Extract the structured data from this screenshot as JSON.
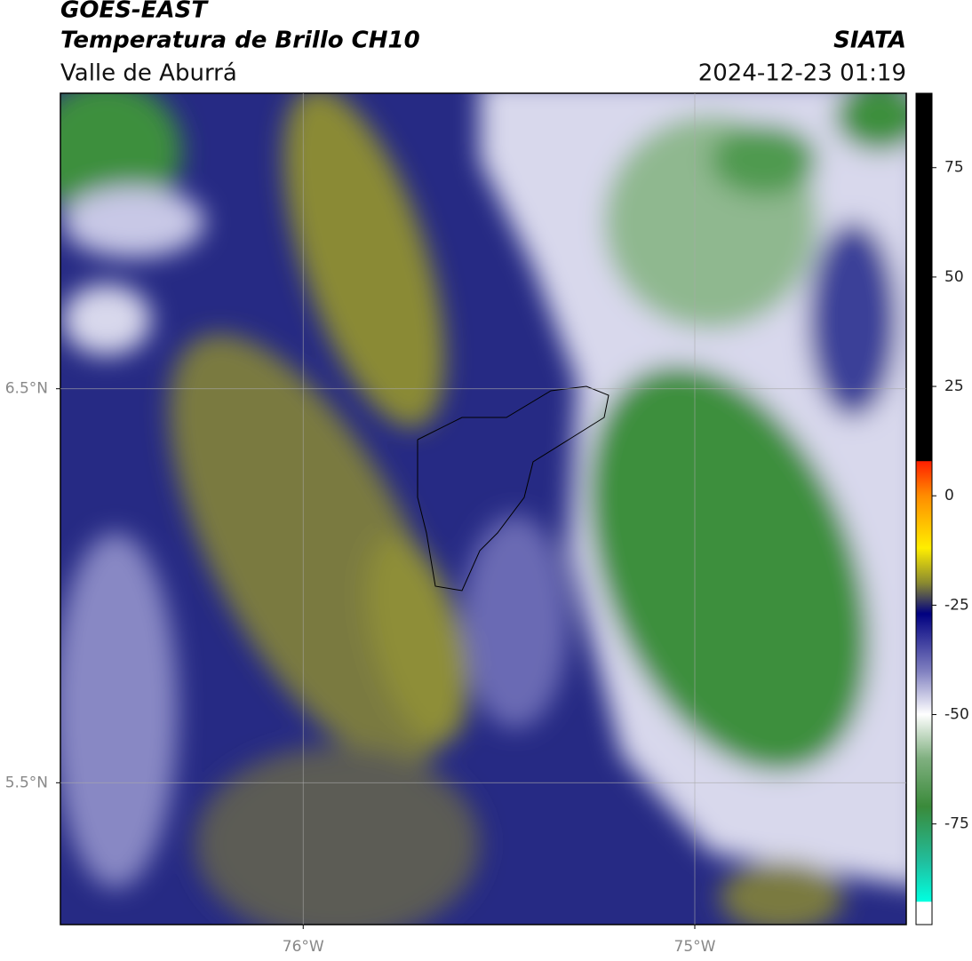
{
  "header": {
    "title": "GOES-EAST",
    "subtitle": "Temperatura de Brillo CH10",
    "region": "Valle de Aburrá",
    "source": "SIATA",
    "datetime": "2024-12-23 01:19"
  },
  "map": {
    "xlim": [
      -76.62,
      -74.46
    ],
    "ylim": [
      5.14,
      7.25
    ],
    "xticks": [
      {
        "value": -76,
        "label": "76°W"
      },
      {
        "value": -75,
        "label": "75°W"
      }
    ],
    "yticks": [
      {
        "value": 6.5,
        "label": "6.5°N"
      },
      {
        "value": 5.5,
        "label": "5.5°N"
      }
    ]
  },
  "colorbar": {
    "clim": [
      -98,
      92
    ],
    "ticks": [
      75,
      50,
      25,
      0,
      -25,
      -50,
      -75
    ]
  }
}
